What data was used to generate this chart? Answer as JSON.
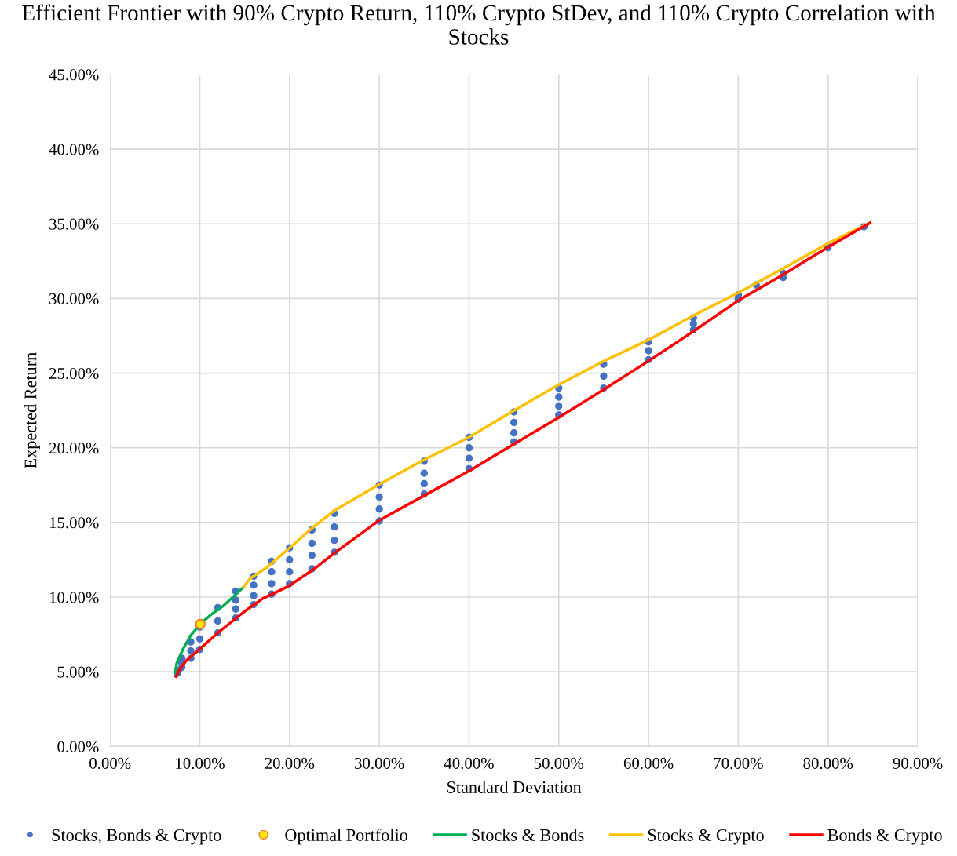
{
  "chart_data": {
    "type": "scatter",
    "title": "Efficient Frontier with 90% Crypto Return, 110% Crypto StDev, and 110% Crypto Correlation with Stocks",
    "xlabel": "Standard Deviation",
    "ylabel": "Expected Return",
    "xlim": [
      0,
      90
    ],
    "ylim": [
      0,
      45
    ],
    "xticks": [
      {
        "value": 0,
        "label": "0.00%"
      },
      {
        "value": 10,
        "label": "10.00%"
      },
      {
        "value": 20,
        "label": "20.00%"
      },
      {
        "value": 30,
        "label": "30.00%"
      },
      {
        "value": 40,
        "label": "40.00%"
      },
      {
        "value": 50,
        "label": "50.00%"
      },
      {
        "value": 60,
        "label": "60.00%"
      },
      {
        "value": 70,
        "label": "70.00%"
      },
      {
        "value": 80,
        "label": "80.00%"
      },
      {
        "value": 90,
        "label": "90.00%"
      }
    ],
    "yticks": [
      {
        "value": 0,
        "label": "0.00%"
      },
      {
        "value": 5,
        "label": "5.00%"
      },
      {
        "value": 10,
        "label": "10.00%"
      },
      {
        "value": 15,
        "label": "15.00%"
      },
      {
        "value": 20,
        "label": "20.00%"
      },
      {
        "value": 25,
        "label": "25.00%"
      },
      {
        "value": 30,
        "label": "30.00%"
      },
      {
        "value": 35,
        "label": "35.00%"
      },
      {
        "value": 40,
        "label": "40.00%"
      },
      {
        "value": 45,
        "label": "45.00%"
      }
    ],
    "grid": true,
    "legend": "bottom",
    "series": [
      {
        "name": "Stocks, Bonds & Crypto",
        "marker": "circle",
        "color": "#4472c4",
        "x": [
          7.5,
          7.6,
          8,
          8,
          8,
          9,
          9,
          9,
          10,
          10,
          10,
          12,
          12,
          12,
          14,
          14,
          14,
          14,
          16,
          16,
          16,
          16,
          18,
          18,
          18,
          18,
          20,
          20,
          20,
          20,
          22.5,
          22.5,
          22.5,
          22.5,
          25,
          25,
          25,
          25,
          30,
          30,
          30,
          30,
          35,
          35,
          35,
          35,
          40,
          40,
          40,
          40,
          45,
          45,
          45,
          45,
          50,
          50,
          50,
          50,
          55,
          55,
          55,
          60,
          60,
          60,
          65,
          65,
          65,
          72,
          70,
          70,
          75,
          75,
          80,
          80,
          84
        ],
        "values": [
          4.9,
          5.1,
          5.9,
          5.6,
          5.3,
          7.0,
          6.4,
          5.9,
          8.0,
          7.2,
          6.5,
          9.3,
          8.4,
          7.6,
          10.4,
          9.8,
          9.2,
          8.6,
          11.4,
          10.8,
          10.1,
          9.5,
          12.4,
          11.7,
          10.9,
          10.2,
          13.3,
          12.5,
          11.7,
          10.9,
          14.5,
          13.6,
          12.8,
          11.9,
          15.6,
          14.7,
          13.8,
          13.0,
          17.5,
          16.7,
          15.9,
          15.1,
          19.1,
          18.3,
          17.6,
          16.9,
          20.7,
          20.0,
          19.3,
          18.6,
          22.4,
          21.7,
          21.0,
          20.4,
          24.0,
          23.4,
          22.8,
          22.2,
          25.6,
          24.8,
          24.0,
          27.1,
          26.5,
          25.9,
          28.7,
          28.3,
          27.9,
          30.9,
          30.25,
          29.95,
          31.7,
          31.4,
          33.5,
          33.4,
          34.8
        ]
      },
      {
        "name": "Optimal Portfolio",
        "marker": "circle",
        "color": "#ffe600",
        "x": [
          10.06
        ],
        "values": [
          8.2
        ]
      },
      {
        "name": "Stocks & Bonds",
        "type": "line",
        "marker": "none",
        "color": "#00b050",
        "x": [
          7.26,
          7.43,
          8.13,
          9.0,
          10.06,
          11.2,
          12.5,
          13.7,
          14.87
        ],
        "values": [
          4.94,
          5.57,
          6.52,
          7.45,
          8.2,
          8.8,
          9.36,
          10.0,
          10.67
        ]
      },
      {
        "name": "Stocks & Crypto",
        "type": "line",
        "marker": "none",
        "color": "#ffc000",
        "x": [
          14.87,
          15.6,
          17.49,
          20.12,
          22.48,
          25,
          30,
          35,
          40,
          45,
          50,
          55,
          60,
          65,
          70,
          75,
          80,
          84.66
        ],
        "values": [
          10.67,
          11.25,
          11.99,
          13.35,
          14.61,
          15.8,
          17.56,
          19.2,
          20.71,
          22.5,
          24.23,
          25.8,
          27.23,
          28.85,
          30.39,
          32.0,
          33.7,
          35.06
        ]
      },
      {
        "name": "Bonds & Crypto",
        "type": "line",
        "marker": "none",
        "color": "#ff0000",
        "x": [
          7.35,
          7.8,
          8.5,
          9.9,
          12,
          14.87,
          17,
          19.85,
          22.74,
          25,
          30,
          35,
          40,
          45,
          50,
          55,
          60,
          65,
          70,
          75,
          80,
          84.66
        ],
        "values": [
          4.68,
          5.2,
          5.75,
          6.47,
          7.6,
          8.99,
          9.9,
          10.72,
          11.88,
          12.95,
          15.14,
          16.8,
          18.45,
          20.25,
          22.03,
          23.9,
          25.81,
          27.8,
          29.86,
          31.6,
          33.44,
          35.06
        ]
      }
    ]
  }
}
